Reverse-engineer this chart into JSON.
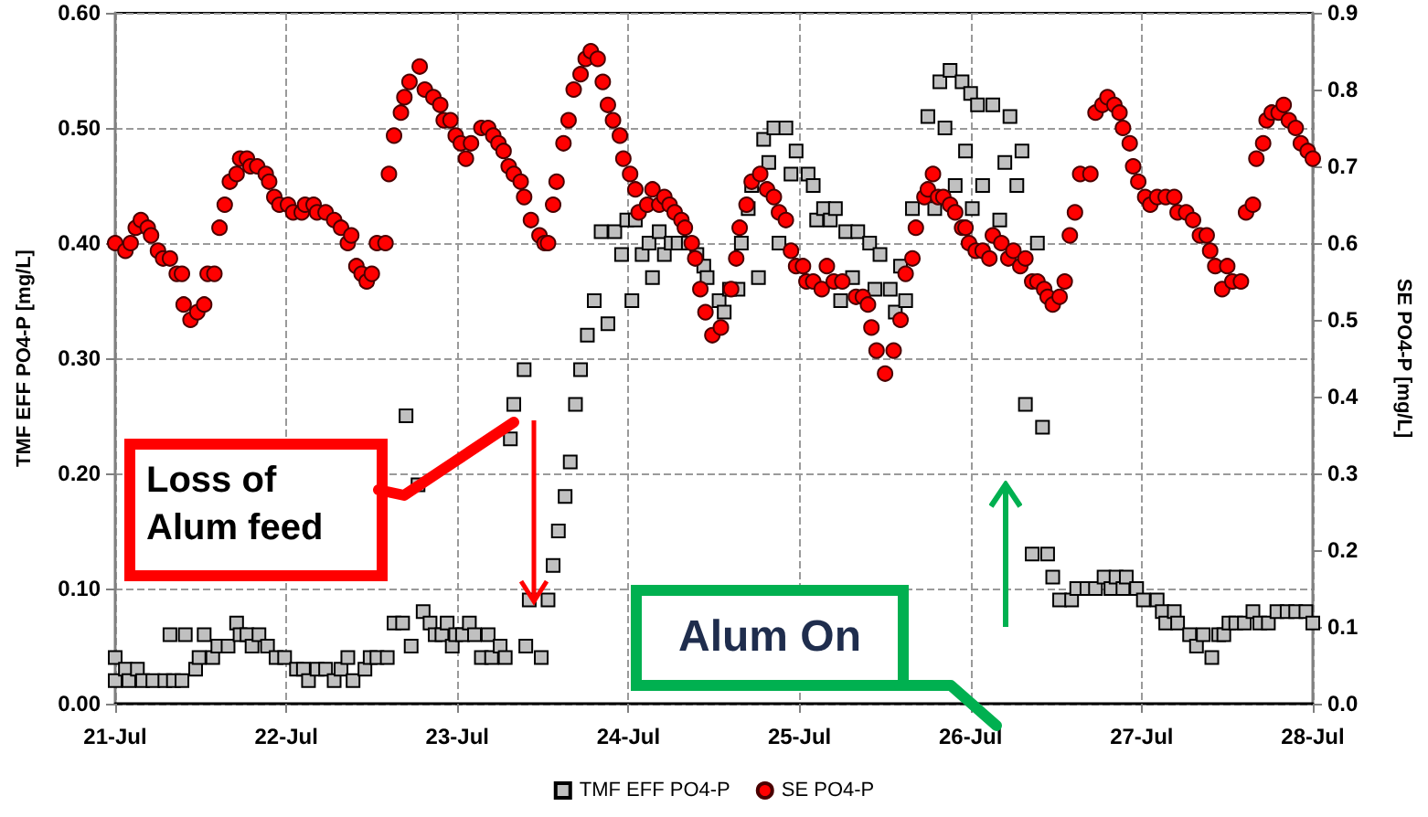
{
  "chart_data": {
    "type": "scatter",
    "ylabel": "TMF EFF PO4-P [mg/L]",
    "y2label": "SE PO4-P [mg/L]",
    "xlim": [
      "--07-21",
      "--07-28"
    ],
    "xticks": [
      {
        "value": "--07-21",
        "label": "21-Jul"
      },
      {
        "value": "--07-22",
        "label": "22-Jul"
      },
      {
        "value": "--07-23",
        "label": "23-Jul"
      },
      {
        "value": "--07-24",
        "label": "24-Jul"
      },
      {
        "value": "--07-25",
        "label": "25-Jul"
      },
      {
        "value": "--07-26",
        "label": "26-Jul"
      },
      {
        "value": "--07-27",
        "label": "27-Jul"
      },
      {
        "value": "--07-28",
        "label": "28-Jul"
      }
    ],
    "ylim": [
      0,
      0.6
    ],
    "yticks": [
      {
        "value": 0,
        "label": "0.00"
      },
      {
        "value": 0.1,
        "label": "0.10"
      },
      {
        "value": 0.2,
        "label": "0.20"
      },
      {
        "value": 0.3,
        "label": "0.30"
      },
      {
        "value": 0.4,
        "label": "0.40"
      },
      {
        "value": 0.5,
        "label": "0.50"
      },
      {
        "value": 0.6,
        "label": "0.60"
      }
    ],
    "y2lim": [
      0,
      0.9
    ],
    "y2ticks": [
      {
        "value": 0,
        "label": "0.0"
      },
      {
        "value": 0.1,
        "label": "0.1"
      },
      {
        "value": 0.2,
        "label": "0.2"
      },
      {
        "value": 0.3,
        "label": "0.3"
      },
      {
        "value": 0.4,
        "label": "0.4"
      },
      {
        "value": 0.5,
        "label": "0.5"
      },
      {
        "value": 0.6,
        "label": "0.6"
      },
      {
        "value": 0.7,
        "label": "0.7"
      },
      {
        "value": 0.8,
        "label": "0.8"
      },
      {
        "value": 0.9,
        "label": "0.9"
      }
    ],
    "grid": true,
    "legend": "bottom",
    "annotations": [
      "Loss of Alum feed",
      "Alum On"
    ],
    "series": [
      {
        "name": "TMF EFF PO4-P",
        "color": "#c0c0c0",
        "marker": "square",
        "x": [
          "--07-21T00:00",
          "--07-21T00:00",
          "--07-21T01:26",
          "--07-21T01:55",
          "--07-21T03:07",
          "--07-21T03:50",
          "--07-21T05:17",
          "--07-21T06:58",
          "--07-21T07:41",
          "--07-21T08:10",
          "--07-21T09:22",
          "--07-21T09:50",
          "--07-21T11:17",
          "--07-21T11:46",
          "--07-21T12:29",
          "--07-21T13:41",
          "--07-21T14:24",
          "--07-21T15:50",
          "--07-21T17:02",
          "--07-21T17:31",
          "--07-21T18:29",
          "--07-21T19:12",
          "--07-21T20:10",
          "--07-21T21:22",
          "--07-21T22:34",
          "--07-21T23:46",
          "--07-22T01:26",
          "--07-22T02:24",
          "--07-22T03:07",
          "--07-22T04:19",
          "--07-22T05:31",
          "--07-22T06:43",
          "--07-22T07:41",
          "--07-22T08:38",
          "--07-22T09:22",
          "--07-22T11:02",
          "--07-22T11:46",
          "--07-22T12:43",
          "--07-22T14:10",
          "--07-22T15:07",
          "--07-22T16:19",
          "--07-22T16:48",
          "--07-22T17:31",
          "--07-22T18:29",
          "--07-22T19:12",
          "--07-22T20:10",
          "--07-22T20:53",
          "--07-22T21:50",
          "--07-22T22:34",
          "--07-22T23:17",
          "--07-22T23:46",
          "--07-23T00:43",
          "--07-23T01:41",
          "--07-23T02:24",
          "--07-23T03:22",
          "--07-23T04:19",
          "--07-23T04:48",
          "--07-23T06:00",
          "--07-23T06:43",
          "--07-23T07:26",
          "--07-23T07:55",
          "--07-23T09:22",
          "--07-23T09:36",
          "--07-23T10:05",
          "--07-23T11:46",
          "--07-23T12:43",
          "--07-23T13:26",
          "--07-23T14:10",
          "--07-23T15:07",
          "--07-23T15:50",
          "--07-23T16:34",
          "--07-23T17:17",
          "--07-23T18:14",
          "--07-23T19:12",
          "--07-23T20:10",
          "--07-23T21:07",
          "--07-23T22:05",
          "--07-23T23:02",
          "--07-23T23:46",
          "--07-24T00:29",
          "--07-24T00:58",
          "--07-24T01:55",
          "--07-24T02:53",
          "--07-24T03:22",
          "--07-24T04:19",
          "--07-24T05:02",
          "--07-24T06:00",
          "--07-24T06:58",
          "--07-24T08:24",
          "--07-24T09:36",
          "--07-24T10:34",
          "--07-24T11:02",
          "--07-24T12:43",
          "--07-24T13:26",
          "--07-24T14:10",
          "--07-24T15:22",
          "--07-24T15:50",
          "--07-24T16:48",
          "--07-24T17:17",
          "--07-24T18:14",
          "--07-24T18:58",
          "--07-24T19:41",
          "--07-24T20:24",
          "--07-24T21:07",
          "--07-24T22:05",
          "--07-24T22:48",
          "--07-24T23:31",
          "--07-25T01:12",
          "--07-25T01:55",
          "--07-25T02:24",
          "--07-25T03:22",
          "--07-25T04:19",
          "--07-25T05:02",
          "--07-25T05:46",
          "--07-25T06:29",
          "--07-25T07:26",
          "--07-25T08:10",
          "--07-25T09:50",
          "--07-25T10:34",
          "--07-25T11:17",
          "--07-25T12:43",
          "--07-25T13:26",
          "--07-25T14:10",
          "--07-25T14:53",
          "--07-25T15:50",
          "--07-25T18:00",
          "--07-25T18:58",
          "--07-25T19:41",
          "--07-25T20:24",
          "--07-25T21:07",
          "--07-25T21:50",
          "--07-25T22:48",
          "--07-25T23:17",
          "--07-26T00:00",
          "--07-26T00:14",
          "--07-26T00:58",
          "--07-26T01:41",
          "--07-26T03:07",
          "--07-26T04:05",
          "--07-26T04:48",
          "--07-26T05:31",
          "--07-26T06:29",
          "--07-26T07:12",
          "--07-26T07:41",
          "--07-26T08:38",
          "--07-26T09:22",
          "--07-26T10:05",
          "--07-26T10:48",
          "--07-26T11:31",
          "--07-26T12:29",
          "--07-26T14:10",
          "--07-26T14:53",
          "--07-26T16:19",
          "--07-26T17:31",
          "--07-26T18:43",
          "--07-26T19:41",
          "--07-26T20:24",
          "--07-26T21:22",
          "--07-26T21:50",
          "--07-26T23:17",
          "--07-27T00:14",
          "--07-27T02:10",
          "--07-27T02:53",
          "--07-27T03:22",
          "--07-27T04:34",
          "--07-27T05:02",
          "--07-27T06:43",
          "--07-27T07:41",
          "--07-27T08:38",
          "--07-27T09:50",
          "--07-27T10:48",
          "--07-27T11:31",
          "--07-27T12:14",
          "--07-27T13:12",
          "--07-27T14:24",
          "--07-27T15:36",
          "--07-27T16:34",
          "--07-27T17:46",
          "--07-27T18:58",
          "--07-27T20:24",
          "--07-27T21:36",
          "--07-27T23:02",
          "--07-28T00:00"
        ],
        "values": [
          0.04,
          0.02,
          0.03,
          0.02,
          0.03,
          0.02,
          0.02,
          0.02,
          0.06,
          0.02,
          0.02,
          0.06,
          0.03,
          0.04,
          0.06,
          0.04,
          0.05,
          0.05,
          0.07,
          0.06,
          0.06,
          0.05,
          0.06,
          0.05,
          0.04,
          0.04,
          0.03,
          0.03,
          0.02,
          0.03,
          0.03,
          0.02,
          0.03,
          0.04,
          0.02,
          0.03,
          0.04,
          0.04,
          0.04,
          0.07,
          0.07,
          0.25,
          0.05,
          0.19,
          0.08,
          0.07,
          0.06,
          0.06,
          0.07,
          0.05,
          0.06,
          0.06,
          0.07,
          0.06,
          0.04,
          0.06,
          0.04,
          0.05,
          0.04,
          0.23,
          0.26,
          0.29,
          0.05,
          0.09,
          0.04,
          0.09,
          0.12,
          0.15,
          0.18,
          0.21,
          0.26,
          0.29,
          0.32,
          0.35,
          0.41,
          0.33,
          0.41,
          0.39,
          0.42,
          0.35,
          0.42,
          0.39,
          0.4,
          0.37,
          0.41,
          0.39,
          0.4,
          0.4,
          0.4,
          0.39,
          0.38,
          0.37,
          0.35,
          0.34,
          0.36,
          0.36,
          0.4,
          0.43,
          0.45,
          0.37,
          0.49,
          0.47,
          0.5,
          0.4,
          0.5,
          0.46,
          0.48,
          0.46,
          0.45,
          0.42,
          0.43,
          0.42,
          0.43,
          0.35,
          0.41,
          0.37,
          0.41,
          0.4,
          0.36,
          0.39,
          0.36,
          0.34,
          0.38,
          0.35,
          0.43,
          0.51,
          0.43,
          0.54,
          0.5,
          0.55,
          0.45,
          0.54,
          0.48,
          0.53,
          0.43,
          0.52,
          0.45,
          0.52,
          0.42,
          0.47,
          0.51,
          0.45,
          0.48,
          0.26,
          0.13,
          0.4,
          0.24,
          0.13,
          0.11,
          0.09,
          0.09,
          0.1,
          0.1,
          0.1,
          0.11,
          0.1,
          0.11,
          0.1,
          0.11,
          0.1,
          0.09,
          0.09,
          0.08,
          0.07,
          0.08,
          0.07,
          0.06,
          0.05,
          0.06,
          0.04,
          0.06,
          0.06,
          0.07,
          0.07,
          0.07,
          0.08,
          0.07,
          0.07,
          0.08,
          0.08,
          0.08,
          0.08,
          0.07
        ]
      },
      {
        "name": "SE PO4-P",
        "color": "#ff0000",
        "marker": "circle",
        "axis": "y2",
        "x": [
          "--07-21T00:00",
          "--07-21T01:26",
          "--07-21T02:10",
          "--07-21T02:53",
          "--07-21T03:36",
          "--07-21T04:34",
          "--07-21T05:02",
          "--07-21T06:00",
          "--07-21T06:43",
          "--07-21T07:41",
          "--07-21T08:38",
          "--07-21T09:22",
          "--07-21T09:36",
          "--07-21T10:34",
          "--07-21T11:31",
          "--07-21T12:29",
          "--07-21T12:58",
          "--07-21T13:55",
          "--07-21T14:38",
          "--07-21T15:22",
          "--07-21T16:05",
          "--07-21T17:02",
          "--07-21T17:31",
          "--07-21T18:29",
          "--07-21T18:58",
          "--07-21T19:55",
          "--07-21T21:07",
          "--07-21T21:36",
          "--07-21T22:19",
          "--07-21T23:02",
          "--07-22T00:14",
          "--07-22T00:58",
          "--07-22T02:10",
          "--07-22T02:38",
          "--07-22T03:50",
          "--07-22T04:19",
          "--07-22T05:31",
          "--07-22T06:43",
          "--07-22T07:41",
          "--07-22T08:38",
          "--07-22T09:07",
          "--07-22T09:50",
          "--07-22T10:34",
          "--07-22T11:17",
          "--07-22T12:00",
          "--07-22T12:43",
          "--07-22T13:55",
          "--07-22T14:24",
          "--07-22T15:07",
          "--07-22T16:05",
          "--07-22T16:34",
          "--07-22T17:17",
          "--07-22T18:43",
          "--07-22T19:26",
          "--07-22T20:38",
          "--07-22T21:36",
          "--07-22T22:05",
          "--07-22T23:02",
          "--07-22T23:46",
          "--07-23T00:29",
          "--07-23T01:12",
          "--07-23T01:55",
          "--07-23T03:22",
          "--07-23T04:19",
          "--07-23T05:02",
          "--07-23T05:46",
          "--07-23T06:29",
          "--07-23T07:12",
          "--07-23T07:55",
          "--07-23T08:53",
          "--07-23T09:22",
          "--07-23T10:19",
          "--07-23T11:31",
          "--07-23T12:14",
          "--07-23T12:43",
          "--07-23T13:26",
          "--07-23T13:55",
          "--07-23T14:53",
          "--07-23T15:36",
          "--07-23T16:19",
          "--07-23T17:17",
          "--07-23T18:00",
          "--07-23T18:43",
          "--07-23T19:41",
          "--07-23T20:24",
          "--07-23T21:07",
          "--07-23T21:50",
          "--07-23T22:48",
          "--07-23T23:17",
          "--07-24T00:14",
          "--07-24T00:58",
          "--07-24T01:26",
          "--07-24T02:38",
          "--07-24T03:22",
          "--07-24T04:19",
          "--07-24T05:02",
          "--07-24T05:46",
          "--07-24T06:29",
          "--07-24T07:26",
          "--07-24T07:55",
          "--07-24T08:53",
          "--07-24T09:22",
          "--07-24T10:05",
          "--07-24T10:48",
          "--07-24T11:46",
          "--07-24T12:58",
          "--07-24T14:24",
          "--07-24T15:07",
          "--07-24T15:36",
          "--07-24T16:34",
          "--07-24T17:17",
          "--07-24T18:29",
          "--07-24T19:26",
          "--07-24T20:24",
          "--07-24T21:07",
          "--07-24T22:05",
          "--07-24T22:48",
          "--07-24T23:31",
          "--07-25T00:29",
          "--07-25T00:58",
          "--07-25T01:55",
          "--07-25T03:07",
          "--07-25T03:50",
          "--07-25T04:48",
          "--07-25T06:00",
          "--07-25T07:55",
          "--07-25T08:53",
          "--07-25T09:36",
          "--07-25T10:05",
          "--07-25T10:48",
          "--07-25T12:00",
          "--07-25T13:12",
          "--07-25T14:10",
          "--07-25T14:53",
          "--07-25T15:50",
          "--07-25T16:19",
          "--07-25T17:31",
          "--07-25T18:00",
          "--07-25T18:43",
          "--07-25T19:26",
          "--07-25T20:10",
          "--07-25T21:07",
          "--07-25T21:50",
          "--07-25T22:48",
          "--07-25T23:17",
          "--07-25T23:46",
          "--07-26T00:43",
          "--07-26T01:41",
          "--07-26T02:38",
          "--07-26T03:07",
          "--07-26T04:19",
          "--07-26T05:17",
          "--07-26T06:00",
          "--07-26T06:58",
          "--07-26T07:41",
          "--07-26T08:38",
          "--07-26T09:22",
          "--07-26T10:19",
          "--07-26T10:48",
          "--07-26T11:31",
          "--07-26T12:29",
          "--07-26T13:12",
          "--07-26T13:55",
          "--07-26T14:38",
          "--07-26T15:22",
          "--07-26T16:48",
          "--07-26T17:31",
          "--07-26T18:29",
          "--07-26T19:12",
          "--07-26T20:10",
          "--07-26T20:53",
          "--07-26T21:22",
          "--07-26T22:19",
          "--07-26T22:48",
          "--07-26T23:31",
          "--07-27T00:29",
          "--07-27T01:12",
          "--07-27T02:10",
          "--07-27T03:22",
          "--07-27T04:34",
          "--07-27T05:02",
          "--07-27T06:14",
          "--07-27T07:12",
          "--07-27T08:10",
          "--07-27T09:07",
          "--07-27T09:36",
          "--07-27T10:19",
          "--07-27T11:17",
          "--07-27T12:00",
          "--07-27T12:43",
          "--07-27T13:55",
          "--07-27T14:38",
          "--07-27T15:36",
          "--07-27T16:05",
          "--07-27T17:02",
          "--07-27T17:31",
          "--07-27T18:14",
          "--07-27T19:12",
          "--07-27T19:55",
          "--07-27T20:38",
          "--07-27T21:36",
          "--07-27T22:19",
          "--07-27T23:17",
          "--07-28T00:00"
        ],
        "values": [
          0.6,
          0.59,
          0.6,
          0.62,
          0.63,
          0.62,
          0.61,
          0.59,
          0.58,
          0.58,
          0.56,
          0.56,
          0.52,
          0.5,
          0.51,
          0.52,
          0.56,
          0.56,
          0.62,
          0.65,
          0.68,
          0.69,
          0.71,
          0.71,
          0.7,
          0.7,
          0.69,
          0.68,
          0.66,
          0.65,
          0.65,
          0.64,
          0.64,
          0.65,
          0.65,
          0.64,
          0.64,
          0.63,
          0.62,
          0.6,
          0.61,
          0.57,
          0.56,
          0.55,
          0.56,
          0.6,
          0.6,
          0.69,
          0.74,
          0.77,
          0.79,
          0.81,
          0.83,
          0.8,
          0.79,
          0.78,
          0.76,
          0.76,
          0.74,
          0.73,
          0.71,
          0.73,
          0.75,
          0.75,
          0.74,
          0.73,
          0.72,
          0.7,
          0.69,
          0.68,
          0.66,
          0.63,
          0.61,
          0.6,
          0.6,
          0.65,
          0.68,
          0.73,
          0.76,
          0.8,
          0.82,
          0.84,
          0.85,
          0.84,
          0.81,
          0.78,
          0.76,
          0.74,
          0.71,
          0.69,
          0.67,
          0.64,
          0.65,
          0.67,
          0.65,
          0.66,
          0.65,
          0.64,
          0.63,
          0.62,
          0.6,
          0.58,
          0.54,
          0.51,
          0.48,
          0.49,
          0.54,
          0.58,
          0.62,
          0.65,
          0.68,
          0.69,
          0.67,
          0.66,
          0.64,
          0.63,
          0.59,
          0.57,
          0.57,
          0.55,
          0.55,
          0.54,
          0.57,
          0.55,
          0.55,
          0.53,
          0.53,
          0.52,
          0.49,
          0.46,
          0.43,
          0.46,
          0.5,
          0.56,
          0.58,
          0.62,
          0.66,
          0.67,
          0.69,
          0.66,
          0.66,
          0.65,
          0.64,
          0.62,
          0.62,
          0.6,
          0.59,
          0.59,
          0.58,
          0.61,
          0.6,
          0.58,
          0.59,
          0.57,
          0.58,
          0.55,
          0.55,
          0.54,
          0.53,
          0.52,
          0.53,
          0.55,
          0.61,
          0.64,
          0.69,
          0.69,
          0.77,
          0.78,
          0.79,
          0.78,
          0.77,
          0.75,
          0.73,
          0.7,
          0.68,
          0.66,
          0.65,
          0.66,
          0.66,
          0.66,
          0.64,
          0.64,
          0.63,
          0.61,
          0.61,
          0.59,
          0.57,
          0.54,
          0.57,
          0.55,
          0.55,
          0.64,
          0.65,
          0.71,
          0.73,
          0.76,
          0.77,
          0.77,
          0.78,
          0.76,
          0.75,
          0.73,
          0.72,
          0.71
        ]
      }
    ]
  }
}
